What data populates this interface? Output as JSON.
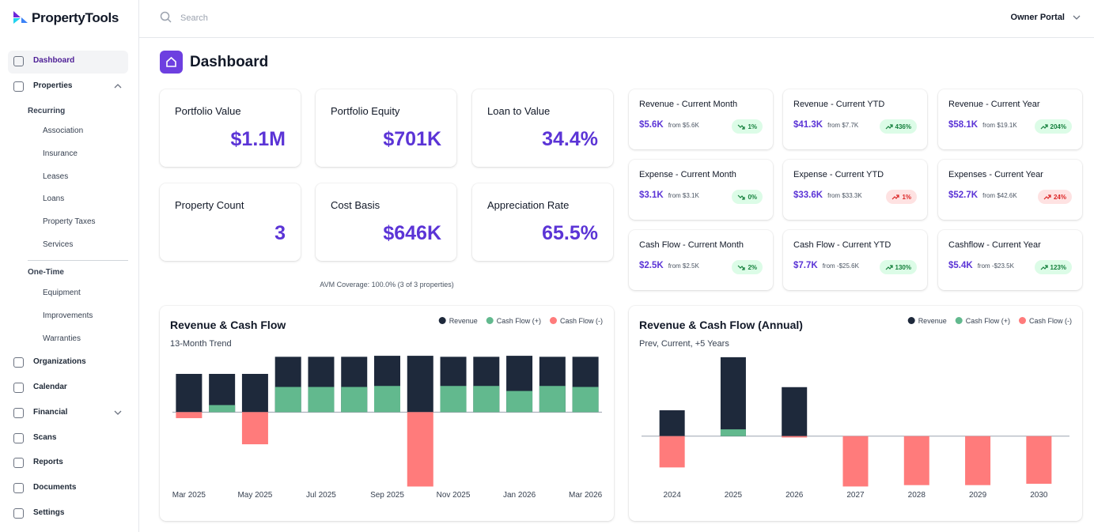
{
  "sidebar": {
    "brand": "PropertyTools",
    "nav_top": [
      "Dashboard",
      "Properties"
    ],
    "recurring_heading": "Recurring",
    "recurring": [
      "Association",
      "Insurance",
      "Leases",
      "Loans",
      "Property Taxes",
      "Services"
    ],
    "one_time_heading": "One-Time",
    "one_time": [
      "Equipment",
      "Improvements",
      "Warranties"
    ],
    "nav_bottom": [
      "Organizations",
      "Calendar",
      "Financial",
      "Scans",
      "Reports",
      "Documents",
      "Settings"
    ]
  },
  "header": {
    "search_placeholder": "Search",
    "portal": "Owner Portal"
  },
  "page_title": "Dashboard",
  "kpis": [
    {
      "label": "Portfolio Value",
      "value": "$1.1M"
    },
    {
      "label": "Portfolio Equity",
      "value": "$701K"
    },
    {
      "label": "Loan to Value",
      "value": "34.4%"
    },
    {
      "label": "Property Count",
      "value": "3"
    },
    {
      "label": "Cost Basis",
      "value": "$646K"
    },
    {
      "label": "Appreciation Rate",
      "value": "65.5%"
    }
  ],
  "avm_note": "AVM Coverage: 100.0% (3 of 3 properties)",
  "stats": [
    {
      "label": "Revenue - Current Month",
      "value": "$5.6K",
      "from": "from $5.6K",
      "change": "1%",
      "trend": "flat",
      "tone": "positive"
    },
    {
      "label": "Revenue - Current YTD",
      "value": "$41.3K",
      "from": "from $7.7K",
      "change": "436%",
      "trend": "up",
      "tone": "positive"
    },
    {
      "label": "Revenue - Current Year",
      "value": "$58.1K",
      "from": "from $19.1K",
      "change": "204%",
      "trend": "up",
      "tone": "positive"
    },
    {
      "label": "Expense - Current Month",
      "value": "$3.1K",
      "from": "from $3.1K",
      "change": "0%",
      "trend": "flat",
      "tone": "positive"
    },
    {
      "label": "Expense - Current YTD",
      "value": "$33.6K",
      "from": "from $33.3K",
      "change": "1%",
      "trend": "up",
      "tone": "negative"
    },
    {
      "label": "Expenses - Current Year",
      "value": "$52.7K",
      "from": "from $42.6K",
      "change": "24%",
      "trend": "up",
      "tone": "negative"
    },
    {
      "label": "Cash Flow - Current Month",
      "value": "$2.5K",
      "from": "from $2.5K",
      "change": "2%",
      "trend": "flat",
      "tone": "positive"
    },
    {
      "label": "Cash Flow - Current YTD",
      "value": "$7.7K",
      "from": "from -$25.6K",
      "change": "130%",
      "trend": "up",
      "tone": "positive"
    },
    {
      "label": "Cashflow - Current Year",
      "value": "$5.4K",
      "from": "from -$23.5K",
      "change": "123%",
      "trend": "up",
      "tone": "positive"
    }
  ],
  "chart_data": [
    {
      "type": "bar",
      "title": "Revenue & Cash Flow",
      "subtitle": "13-Month Trend",
      "legend": "top-right",
      "categories": [
        "Mar 2025",
        null,
        "May 2025",
        null,
        "Jul 2025",
        null,
        "Sep 2025",
        null,
        "Nov 2025",
        null,
        "Jan 2026",
        null,
        "Mar 2026"
      ],
      "series": [
        {
          "name": "Revenue",
          "color": "#1e293b",
          "values": [
            3.8,
            3.8,
            3.8,
            5.5,
            5.5,
            5.5,
            5.6,
            5.6,
            5.5,
            5.5,
            5.6,
            5.5,
            5.5
          ]
        },
        {
          "name": "Cash Flow (+)",
          "color": "#62b98e",
          "values": [
            null,
            0.7,
            null,
            2.5,
            2.5,
            2.5,
            2.6,
            null,
            2.6,
            2.6,
            2.1,
            2.6,
            2.5
          ]
        },
        {
          "name": "Cash Flow (-)",
          "color": "#ff7b7b",
          "values": [
            -0.6,
            null,
            -3.2,
            null,
            null,
            null,
            null,
            -7.4,
            null,
            null,
            null,
            null,
            null
          ]
        }
      ],
      "ylim": [
        -7.6,
        6
      ]
    },
    {
      "type": "bar",
      "title": "Revenue & Cash Flow (Annual)",
      "subtitle": "Prev, Current, +5 Years",
      "legend": "top-right",
      "categories": [
        "2024",
        "2025",
        "2026",
        "2027",
        "2028",
        "2029",
        "2030"
      ],
      "series": [
        {
          "name": "Revenue",
          "color": "#1e293b",
          "values": [
            19,
            58,
            36,
            0,
            0,
            0,
            0
          ]
        },
        {
          "name": "Cash Flow (+)",
          "color": "#62b98e",
          "values": [
            null,
            5,
            null,
            null,
            null,
            null,
            null
          ]
        },
        {
          "name": "Cash Flow (-)",
          "color": "#ff7b7b",
          "values": [
            -23,
            null,
            -1,
            -37,
            -36,
            -36,
            -35
          ]
        }
      ],
      "ylim": [
        -38.5,
        62
      ]
    }
  ]
}
